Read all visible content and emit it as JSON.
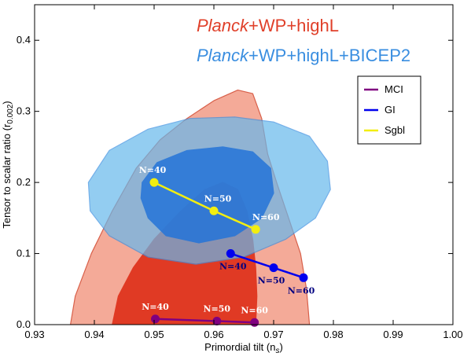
{
  "chart_data": {
    "type": "scatter",
    "xlabel": "Primordial tilt (n",
    "xlabel_sub": "s",
    "xlabel_end": ")",
    "ylabel": "Tensor to scalar ratio (r",
    "ylabel_sub": "0.002",
    "ylabel_end": ")",
    "xlim": [
      0.93,
      1.0
    ],
    "ylim": [
      0.0,
      0.45
    ],
    "xticks": [
      "0.93",
      "0.94",
      "0.95",
      "0.96",
      "0.97",
      "0.98",
      "0.99",
      "1.00"
    ],
    "xtick_values": [
      0.93,
      0.94,
      0.95,
      0.96,
      0.97,
      0.98,
      0.99,
      1.0
    ],
    "yticks": [
      "0.0",
      "0.1",
      "0.2",
      "0.3",
      "0.4"
    ],
    "ytick_values": [
      0.0,
      0.1,
      0.2,
      0.3,
      0.4
    ],
    "title_lines": [
      {
        "italic": "Planck",
        "rest": "+WP+highL",
        "color": "#e0402a"
      },
      {
        "italic": "Planck",
        "rest": "+WP+highL+BICEP2",
        "color": "#3a8ee0"
      }
    ],
    "series": [
      {
        "name": "MCI",
        "color": "#800080",
        "points": [
          {
            "x": 0.9502,
            "y": 0.008,
            "label": "N=40"
          },
          {
            "x": 0.9605,
            "y": 0.005,
            "label": "N=50"
          },
          {
            "x": 0.9668,
            "y": 0.003,
            "label": "N=60"
          }
        ]
      },
      {
        "name": "GI",
        "color": "#0000ee",
        "points": [
          {
            "x": 0.9628,
            "y": 0.1,
            "label": "N=40"
          },
          {
            "x": 0.97,
            "y": 0.08,
            "label": "N=50"
          },
          {
            "x": 0.975,
            "y": 0.066,
            "label": "N=60"
          }
        ]
      },
      {
        "name": "Sgbl",
        "color": "#f2ee10",
        "points": [
          {
            "x": 0.95,
            "y": 0.2,
            "label": "N=40"
          },
          {
            "x": 0.96,
            "y": 0.16,
            "label": "N=50"
          },
          {
            "x": 0.967,
            "y": 0.134,
            "label": "N=60"
          }
        ]
      }
    ],
    "contours": [
      {
        "name": "Planck+WP+highL 95%",
        "fill": "#f4aa98",
        "stroke": "#d8604a",
        "points": [
          [
            0.936,
            0.0
          ],
          [
            0.9368,
            0.04
          ],
          [
            0.9395,
            0.1
          ],
          [
            0.943,
            0.16
          ],
          [
            0.947,
            0.22
          ],
          [
            0.951,
            0.26
          ],
          [
            0.9555,
            0.29
          ],
          [
            0.96,
            0.315
          ],
          [
            0.964,
            0.33
          ],
          [
            0.9665,
            0.325
          ],
          [
            0.968,
            0.29
          ],
          [
            0.969,
            0.24
          ],
          [
            0.9705,
            0.2
          ],
          [
            0.9725,
            0.15
          ],
          [
            0.9745,
            0.1
          ],
          [
            0.9755,
            0.05
          ],
          [
            0.976,
            0.0
          ]
        ]
      },
      {
        "name": "Planck+WP+highL 68%",
        "fill": "#e03a24",
        "stroke": "#e03a24",
        "points": [
          [
            0.943,
            0.0
          ],
          [
            0.944,
            0.04
          ],
          [
            0.9465,
            0.08
          ],
          [
            0.95,
            0.12
          ],
          [
            0.9545,
            0.16
          ],
          [
            0.9585,
            0.19
          ],
          [
            0.9615,
            0.2
          ],
          [
            0.964,
            0.19
          ],
          [
            0.9655,
            0.16
          ],
          [
            0.9665,
            0.12
          ],
          [
            0.967,
            0.08
          ],
          [
            0.9672,
            0.04
          ],
          [
            0.967,
            0.0
          ]
        ]
      },
      {
        "name": "Planck+WP+highL+BICEP2 95%",
        "fill": "#66b8ec",
        "stroke": "#3a8ee0",
        "opacity": 0.7,
        "points": [
          [
            0.939,
            0.2
          ],
          [
            0.9425,
            0.245
          ],
          [
            0.949,
            0.275
          ],
          [
            0.956,
            0.29
          ],
          [
            0.9635,
            0.292
          ],
          [
            0.97,
            0.285
          ],
          [
            0.976,
            0.265
          ],
          [
            0.979,
            0.23
          ],
          [
            0.9795,
            0.19
          ],
          [
            0.977,
            0.15
          ],
          [
            0.972,
            0.12
          ],
          [
            0.965,
            0.095
          ],
          [
            0.957,
            0.085
          ],
          [
            0.949,
            0.095
          ],
          [
            0.9425,
            0.125
          ],
          [
            0.9393,
            0.16
          ]
        ]
      },
      {
        "name": "Planck+WP+highL+BICEP2 68%",
        "fill": "#2474d8",
        "stroke": "#2474d8",
        "opacity": 0.85,
        "points": [
          [
            0.948,
            0.2
          ],
          [
            0.9505,
            0.228
          ],
          [
            0.9555,
            0.245
          ],
          [
            0.9615,
            0.25
          ],
          [
            0.9665,
            0.243
          ],
          [
            0.9695,
            0.22
          ],
          [
            0.97,
            0.185
          ],
          [
            0.968,
            0.15
          ],
          [
            0.9635,
            0.125
          ],
          [
            0.9575,
            0.115
          ],
          [
            0.952,
            0.125
          ],
          [
            0.949,
            0.15
          ],
          [
            0.9478,
            0.178
          ]
        ]
      }
    ],
    "legend_position": "top-right",
    "grid": false
  }
}
